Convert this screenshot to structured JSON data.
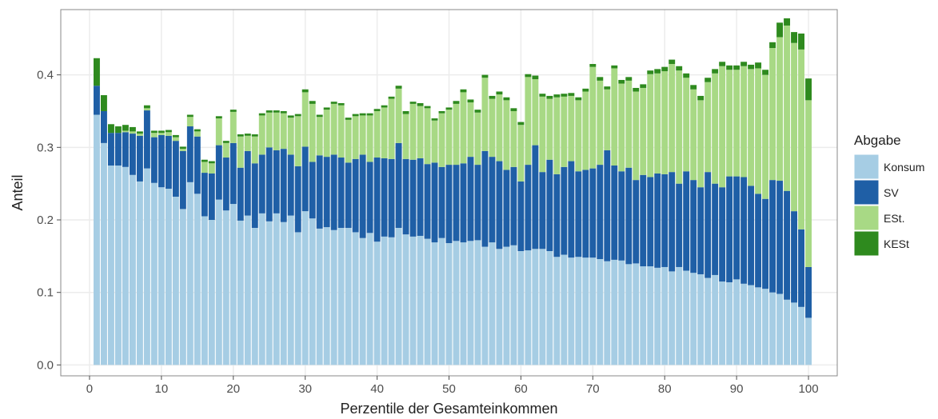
{
  "chart_data": {
    "type": "bar",
    "stacked": true,
    "xlabel": "Perzentile der Gesamteinkommen",
    "ylabel": "Anteil",
    "xlim": [
      -4,
      104
    ],
    "ylim": [
      -0.015,
      0.49
    ],
    "x_ticks": [
      0,
      10,
      20,
      30,
      40,
      50,
      60,
      70,
      80,
      90,
      100
    ],
    "x_tick_labels": [
      "0",
      "10",
      "20",
      "30",
      "40",
      "50",
      "60",
      "70",
      "80",
      "90",
      "100"
    ],
    "y_ticks": [
      0.0,
      0.1,
      0.2,
      0.3,
      0.4
    ],
    "y_tick_labels": [
      "0.0",
      "0.1",
      "0.2",
      "0.3",
      "0.4"
    ],
    "grid": true,
    "legend": {
      "title": "Abgabe",
      "position": "right",
      "labels": [
        "Konsum",
        "SV",
        "ESt.",
        "KESt"
      ]
    },
    "colors": {
      "Konsum": "#a6cde4",
      "SV": "#1f5fa6",
      "ESt.": "#a8d985",
      "KESt": "#2e8a1e",
      "panel_background": "#ffffff",
      "gridline": "#ececec"
    },
    "x": [
      1,
      2,
      3,
      4,
      5,
      6,
      7,
      8,
      9,
      10,
      11,
      12,
      13,
      14,
      15,
      16,
      17,
      18,
      19,
      20,
      21,
      22,
      23,
      24,
      25,
      26,
      27,
      28,
      29,
      30,
      31,
      32,
      33,
      34,
      35,
      36,
      37,
      38,
      39,
      40,
      41,
      42,
      43,
      44,
      45,
      46,
      47,
      48,
      49,
      50,
      51,
      52,
      53,
      54,
      55,
      56,
      57,
      58,
      59,
      60,
      61,
      62,
      63,
      64,
      65,
      66,
      67,
      68,
      69,
      70,
      71,
      72,
      73,
      74,
      75,
      76,
      77,
      78,
      79,
      80,
      81,
      82,
      83,
      84,
      85,
      86,
      87,
      88,
      89,
      90,
      91,
      92,
      93,
      94,
      95,
      96,
      97,
      98,
      99,
      100
    ],
    "series": [
      {
        "name": "Konsum",
        "values": [
          0.345,
          0.306,
          0.275,
          0.275,
          0.273,
          0.262,
          0.253,
          0.271,
          0.251,
          0.245,
          0.243,
          0.232,
          0.215,
          0.252,
          0.236,
          0.205,
          0.2,
          0.228,
          0.213,
          0.222,
          0.199,
          0.206,
          0.189,
          0.209,
          0.198,
          0.209,
          0.197,
          0.206,
          0.183,
          0.212,
          0.202,
          0.188,
          0.19,
          0.186,
          0.189,
          0.189,
          0.183,
          0.175,
          0.182,
          0.17,
          0.177,
          0.176,
          0.189,
          0.18,
          0.177,
          0.178,
          0.174,
          0.169,
          0.175,
          0.168,
          0.171,
          0.169,
          0.171,
          0.172,
          0.163,
          0.169,
          0.16,
          0.163,
          0.165,
          0.157,
          0.158,
          0.16,
          0.16,
          0.157,
          0.149,
          0.152,
          0.148,
          0.149,
          0.148,
          0.148,
          0.146,
          0.143,
          0.145,
          0.144,
          0.139,
          0.14,
          0.136,
          0.136,
          0.134,
          0.135,
          0.129,
          0.135,
          0.13,
          0.127,
          0.125,
          0.12,
          0.124,
          0.115,
          0.114,
          0.118,
          0.112,
          0.11,
          0.107,
          0.105,
          0.1,
          0.098,
          0.09,
          0.086,
          0.08,
          0.065
        ]
      },
      {
        "name": "SV",
        "values": [
          0.04,
          0.044,
          0.045,
          0.045,
          0.048,
          0.057,
          0.063,
          0.08,
          0.063,
          0.072,
          0.073,
          0.077,
          0.08,
          0.077,
          0.079,
          0.06,
          0.064,
          0.075,
          0.073,
          0.084,
          0.073,
          0.089,
          0.089,
          0.081,
          0.102,
          0.087,
          0.101,
          0.084,
          0.091,
          0.089,
          0.078,
          0.101,
          0.097,
          0.104,
          0.097,
          0.09,
          0.101,
          0.115,
          0.098,
          0.116,
          0.108,
          0.108,
          0.117,
          0.104,
          0.106,
          0.107,
          0.103,
          0.11,
          0.098,
          0.108,
          0.105,
          0.109,
          0.116,
          0.104,
          0.132,
          0.118,
          0.121,
          0.106,
          0.108,
          0.096,
          0.118,
          0.143,
          0.106,
          0.126,
          0.114,
          0.121,
          0.133,
          0.118,
          0.121,
          0.123,
          0.13,
          0.153,
          0.13,
          0.123,
          0.133,
          0.115,
          0.126,
          0.123,
          0.13,
          0.128,
          0.137,
          0.115,
          0.137,
          0.128,
          0.12,
          0.146,
          0.126,
          0.13,
          0.146,
          0.142,
          0.147,
          0.137,
          0.129,
          0.124,
          0.155,
          0.156,
          0.15,
          0.126,
          0.107,
          0.07
        ]
      },
      {
        "name": "ESt.",
        "values": [
          0.0,
          0.0,
          0.0,
          0.0,
          0.002,
          0.003,
          0.003,
          0.003,
          0.006,
          0.003,
          0.005,
          0.005,
          0.003,
          0.013,
          0.007,
          0.015,
          0.014,
          0.037,
          0.02,
          0.043,
          0.043,
          0.021,
          0.037,
          0.054,
          0.048,
          0.052,
          0.049,
          0.051,
          0.069,
          0.075,
          0.08,
          0.053,
          0.065,
          0.07,
          0.072,
          0.059,
          0.059,
          0.054,
          0.064,
          0.064,
          0.07,
          0.083,
          0.075,
          0.062,
          0.077,
          0.072,
          0.077,
          0.058,
          0.074,
          0.076,
          0.084,
          0.098,
          0.075,
          0.072,
          0.101,
          0.08,
          0.092,
          0.096,
          0.077,
          0.078,
          0.121,
          0.091,
          0.104,
          0.084,
          0.106,
          0.097,
          0.09,
          0.098,
          0.108,
          0.14,
          0.116,
          0.084,
          0.134,
          0.121,
          0.12,
          0.122,
          0.12,
          0.142,
          0.138,
          0.142,
          0.149,
          0.156,
          0.129,
          0.125,
          0.12,
          0.124,
          0.152,
          0.167,
          0.147,
          0.147,
          0.153,
          0.161,
          0.173,
          0.171,
          0.182,
          0.198,
          0.228,
          0.232,
          0.248,
          0.23
        ]
      },
      {
        "name": "KESt",
        "values": [
          0.038,
          0.022,
          0.012,
          0.009,
          0.008,
          0.006,
          0.003,
          0.004,
          0.003,
          0.003,
          0.003,
          0.003,
          0.003,
          0.003,
          0.003,
          0.003,
          0.003,
          0.003,
          0.003,
          0.003,
          0.003,
          0.003,
          0.003,
          0.003,
          0.003,
          0.003,
          0.003,
          0.003,
          0.003,
          0.004,
          0.004,
          0.003,
          0.003,
          0.003,
          0.003,
          0.003,
          0.003,
          0.003,
          0.003,
          0.003,
          0.003,
          0.003,
          0.004,
          0.004,
          0.003,
          0.004,
          0.003,
          0.003,
          0.003,
          0.003,
          0.004,
          0.004,
          0.004,
          0.004,
          0.004,
          0.004,
          0.004,
          0.004,
          0.004,
          0.004,
          0.004,
          0.005,
          0.004,
          0.004,
          0.004,
          0.004,
          0.004,
          0.004,
          0.004,
          0.004,
          0.005,
          0.004,
          0.004,
          0.005,
          0.005,
          0.005,
          0.005,
          0.005,
          0.006,
          0.006,
          0.006,
          0.006,
          0.006,
          0.006,
          0.006,
          0.006,
          0.006,
          0.006,
          0.006,
          0.006,
          0.006,
          0.006,
          0.008,
          0.007,
          0.008,
          0.02,
          0.01,
          0.015,
          0.022,
          0.03
        ]
      }
    ]
  }
}
